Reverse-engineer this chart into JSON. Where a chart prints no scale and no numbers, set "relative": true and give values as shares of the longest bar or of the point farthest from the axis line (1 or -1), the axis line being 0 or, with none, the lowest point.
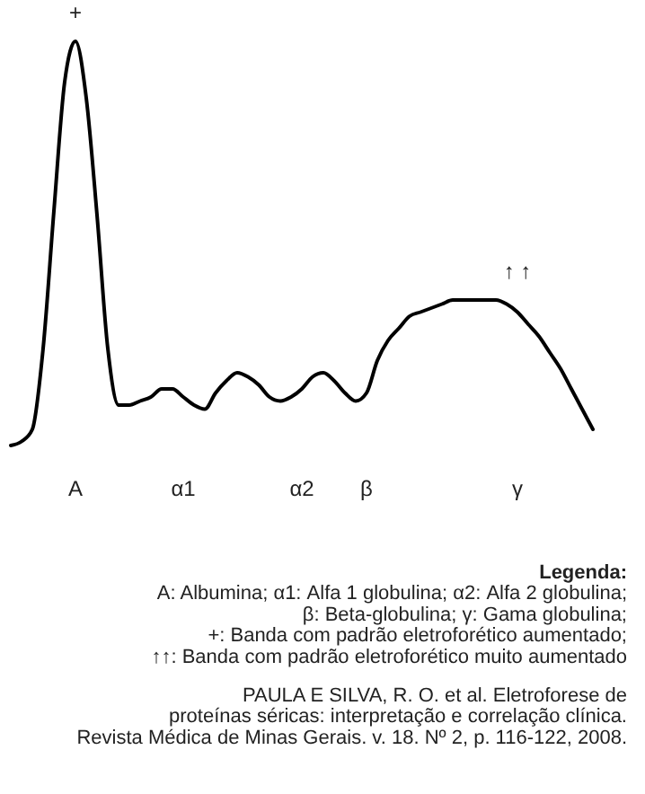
{
  "chart_data": {
    "type": "line",
    "relative": true,
    "color": "#000000",
    "categories": [
      null,
      null,
      null,
      null,
      null,
      null,
      "A",
      null,
      null,
      null,
      null,
      null,
      null,
      null,
      null,
      null,
      "α1",
      null,
      null,
      null,
      null,
      null,
      null,
      null,
      null,
      null,
      null,
      "α2",
      null,
      null,
      null,
      null,
      null,
      "β",
      null,
      null,
      null,
      null,
      null,
      null,
      null,
      null,
      null,
      null,
      null,
      null,
      null,
      "γ",
      null,
      null,
      null,
      null,
      null,
      null,
      null
    ],
    "values": [
      0,
      0.01,
      0.04,
      0.24,
      0.58,
      0.9,
      1,
      0.86,
      0.57,
      0.24,
      0.1,
      0.1,
      0.11,
      0.12,
      0.14,
      0.14,
      0.12,
      0.1,
      0.09,
      0.13,
      0.16,
      0.18,
      0.17,
      0.15,
      0.12,
      0.11,
      0.12,
      0.14,
      0.17,
      0.18,
      0.16,
      0.13,
      0.11,
      0.13,
      0.21,
      0.26,
      0.29,
      0.32,
      0.33,
      0.34,
      0.35,
      0.36,
      0.36,
      0.36,
      0.36,
      0.36,
      0.35,
      0.33,
      0.3,
      0.27,
      0.23,
      0.19,
      0.14,
      0.09,
      0.04
    ],
    "annotations": [
      {
        "text": "+",
        "x": "A",
        "y": 1
      },
      {
        "text": "↑ ↑",
        "x": "γ",
        "y": 0.36
      },
      "Legenda:\nA: Albumina; α1: Alfa 1 globulina; α2: Alfa 2 globulina;\nβ: Beta-globulina; γ: Gama globulina;\n+: Banda com padrão eletroforético aumentado;\n↑↑: Banda com padrão eletroforético muito aumentado",
      "PAULA E SILVA, R. O. et al. Eletroforese de\nproteínas séricas: interpretação e correlação clínica.\nRevista Médica de Minas Gerais. v. 18. Nº 2, p. 116-122, 2008."
    ]
  }
}
